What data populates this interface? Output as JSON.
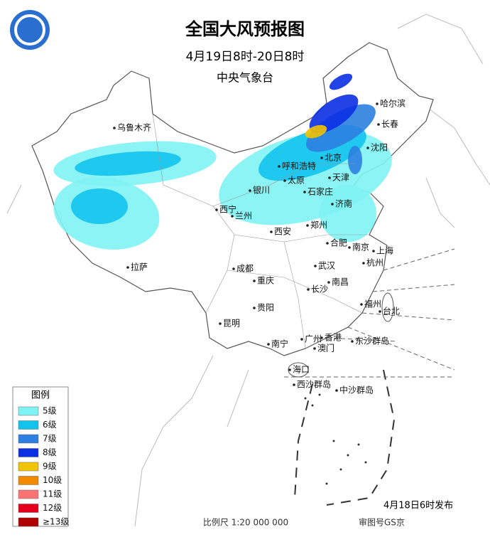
{
  "header": {
    "title": "全国大风预报图",
    "subtitle": "4月19日8时-20日8时",
    "issuer": "中央气象台"
  },
  "legend": {
    "title": "图例",
    "items": [
      {
        "label": "5级",
        "color": "#7ff3f3"
      },
      {
        "label": "6级",
        "color": "#12c3ee"
      },
      {
        "label": "7级",
        "color": "#2c7fe0"
      },
      {
        "label": "8级",
        "color": "#0b2fe3"
      },
      {
        "label": "9级",
        "color": "#f3c300"
      },
      {
        "label": "10级",
        "color": "#f18a00"
      },
      {
        "label": "11级",
        "color": "#ff7373"
      },
      {
        "label": "12级",
        "color": "#e4001b"
      },
      {
        "label": "≥13级",
        "color": "#b00000"
      }
    ]
  },
  "cities": [
    {
      "name": "乌鲁木齐"
    },
    {
      "name": "哈尔滨"
    },
    {
      "name": "长春"
    },
    {
      "name": "沈阳"
    },
    {
      "name": "北京"
    },
    {
      "name": "呼和浩特"
    },
    {
      "name": "天津"
    },
    {
      "name": "太原"
    },
    {
      "name": "石家庄"
    },
    {
      "name": "银川"
    },
    {
      "name": "济南"
    },
    {
      "name": "西宁"
    },
    {
      "name": "兰州"
    },
    {
      "name": "郑州"
    },
    {
      "name": "西安"
    },
    {
      "name": "合肥"
    },
    {
      "name": "南京"
    },
    {
      "name": "上海"
    },
    {
      "name": "成都"
    },
    {
      "name": "武汉"
    },
    {
      "name": "杭州"
    },
    {
      "name": "拉萨"
    },
    {
      "name": "重庆"
    },
    {
      "name": "南昌"
    },
    {
      "name": "长沙"
    },
    {
      "name": "福州"
    },
    {
      "name": "贵阳"
    },
    {
      "name": "台北"
    },
    {
      "name": "昆明"
    },
    {
      "name": "广州"
    },
    {
      "name": "香港"
    },
    {
      "name": "澳门"
    },
    {
      "name": "南宁"
    },
    {
      "name": "东沙群岛"
    },
    {
      "name": "海口"
    },
    {
      "name": "西沙群岛"
    },
    {
      "name": "中沙群岛"
    }
  ],
  "footer": {
    "scale": "比例尺 1:20 000 000",
    "approval": "审图号GS京",
    "issued": "4月18日6时发布"
  }
}
